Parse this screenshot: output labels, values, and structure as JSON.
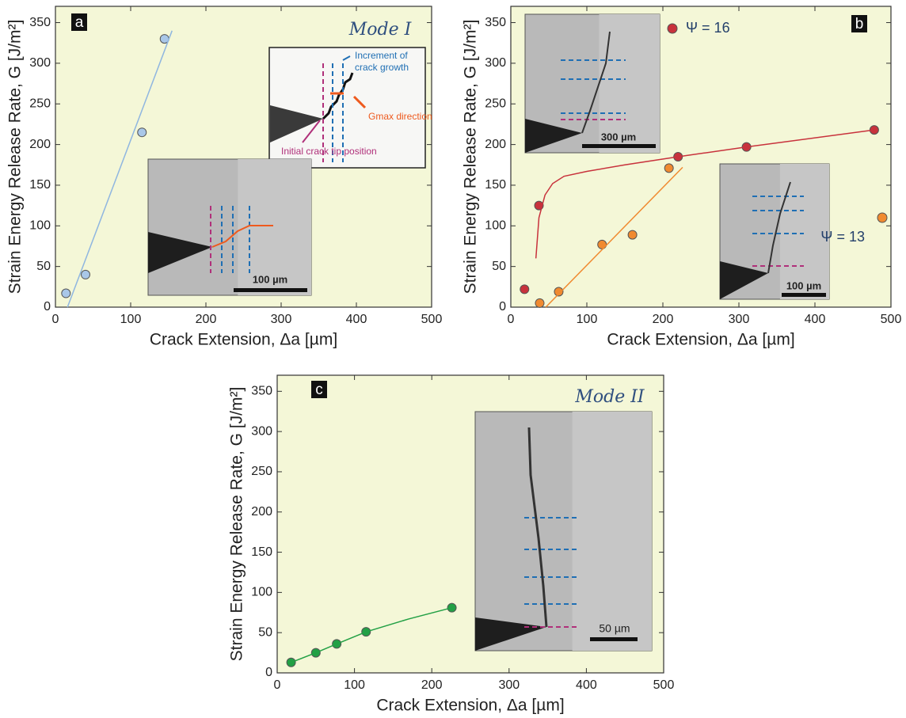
{
  "chart_data": [
    {
      "type": "scatter",
      "panel_label": "a",
      "x_label": "Crack Extension, Δa [µm]",
      "y_label": "Strain Energy Release Rate, G [J/m²]",
      "xlim": [
        0,
        500
      ],
      "ylim": [
        0,
        370
      ],
      "xticks": [
        0,
        100,
        200,
        300,
        400,
        500
      ],
      "yticks": [
        0,
        50,
        100,
        150,
        200,
        250,
        300,
        350
      ],
      "background": "#f4f7d7",
      "annotations": [
        "Mode I",
        "Increment of",
        "crack growth",
        "Gmax direction",
        "Initial crack tip position",
        "100 µm"
      ],
      "series": [
        {
          "mode": "markers",
          "color": "#a9c7e8",
          "x": [
            14,
            40,
            115,
            145
          ],
          "values": [
            17,
            40,
            215,
            330
          ]
        },
        {
          "mode": "line",
          "color": "#8fb6e0",
          "x": [
            16,
            155
          ],
          "values": [
            0,
            340
          ]
        }
      ]
    },
    {
      "type": "scatter",
      "panel_label": "b",
      "x_label": "Crack Extension, Δa [µm]",
      "y_label": "Strain Energy Release Rate, G [J/m²]",
      "xlim": [
        0,
        500
      ],
      "ylim": [
        0,
        370
      ],
      "xticks": [
        0,
        100,
        200,
        300,
        400,
        500
      ],
      "yticks": [
        0,
        50,
        100,
        150,
        200,
        250,
        300,
        350
      ],
      "background": "#f4f7d7",
      "annotations": [
        "300 µm",
        "100 µm"
      ],
      "series": [
        {
          "name": "Ψ = 16",
          "mode": "markers",
          "color": "#c8323c",
          "x": [
            18,
            37,
            220,
            310,
            478
          ],
          "values": [
            22,
            125,
            185,
            197,
            218
          ]
        },
        {
          "mode": "line",
          "color": "#c8323c",
          "x": [
            33,
            37,
            45,
            55,
            70,
            100,
            150,
            220,
            310,
            478
          ],
          "values": [
            60,
            110,
            138,
            152,
            161,
            167,
            175,
            185,
            197,
            218
          ]
        },
        {
          "name": "Ψ = 13",
          "mode": "markers",
          "color": "#f08a30",
          "x": [
            38,
            63,
            120,
            160,
            208
          ],
          "values": [
            5,
            19,
            77,
            89,
            171
          ]
        },
        {
          "mode": "line",
          "color": "#f08a30",
          "x": [
            46,
            226
          ],
          "values": [
            0,
            172
          ]
        }
      ]
    },
    {
      "type": "scatter",
      "panel_label": "c",
      "x_label": "Crack Extension, Δa [µm]",
      "y_label": "Strain Energy Release Rate, G [J/m²]",
      "xlim": [
        0,
        500
      ],
      "ylim": [
        0,
        370
      ],
      "xticks": [
        0,
        100,
        200,
        300,
        400,
        500
      ],
      "yticks": [
        0,
        50,
        100,
        150,
        200,
        250,
        300,
        350
      ],
      "background": "#f4f7d7",
      "annotations": [
        "Mode II",
        "50 µm"
      ],
      "series": [
        {
          "mode": "markers",
          "color": "#22a045",
          "x": [
            18,
            50,
            77,
            115,
            226
          ],
          "values": [
            13,
            25,
            36,
            51,
            81
          ]
        },
        {
          "mode": "line",
          "color": "#22a045",
          "x": [
            18,
            50,
            77,
            115,
            170,
            226
          ],
          "values": [
            13,
            25,
            36,
            51,
            67,
            81
          ]
        }
      ]
    }
  ]
}
